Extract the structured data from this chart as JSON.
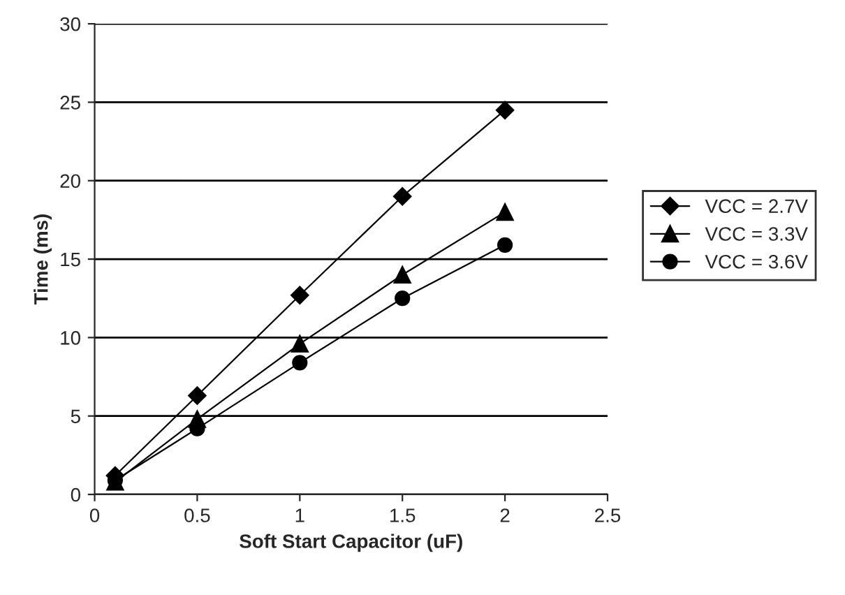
{
  "chart_data": {
    "type": "line",
    "xlabel": "Soft Start Capacitor (uF)",
    "ylabel": "Time (ms)",
    "x": [
      0.1,
      0.5,
      1,
      1.5,
      2
    ],
    "series": [
      {
        "name": "VCC = 2.7V",
        "color": "#000000",
        "marker": "diamond",
        "values": [
          1.2,
          6.3,
          12.7,
          19,
          24.5
        ]
      },
      {
        "name": "VCC = 3.3V",
        "color": "#000000",
        "marker": "triangle",
        "values": [
          0.8,
          4.8,
          9.6,
          14,
          18
        ]
      },
      {
        "name": "VCC = 3.6V",
        "color": "#000000",
        "marker": "circle",
        "values": [
          0.9,
          4.2,
          8.4,
          12.5,
          15.9
        ]
      }
    ],
    "xlim": [
      0,
      2.5
    ],
    "xticks": [
      0,
      0.5,
      1,
      1.5,
      2,
      2.5
    ],
    "ylim": [
      0,
      30
    ],
    "yticks": [
      0,
      5,
      10,
      15,
      20,
      25,
      30
    ],
    "grid": "y",
    "legend": "right",
    "line_style": "solid"
  }
}
